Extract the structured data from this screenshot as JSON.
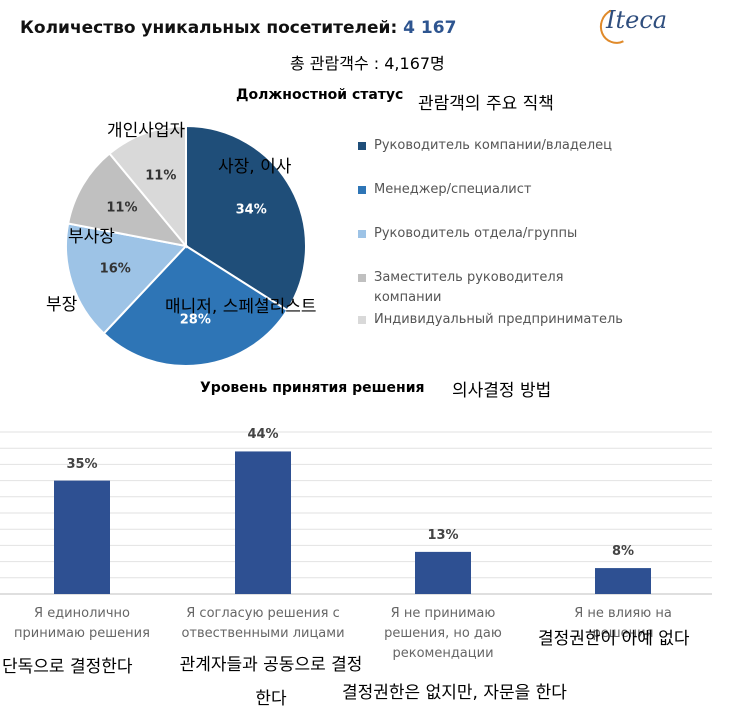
{
  "header": {
    "title_prefix": "Количество уникальных посетителей:",
    "title_number": "4 167",
    "logo": "ITECA",
    "korean_subtitle": "총 관람객수 : 4,167명"
  },
  "colors": {
    "title_number": "#2e5590",
    "bar": "#2e5092",
    "slice_1": "#1f4e79",
    "slice_2": "#2e75b6",
    "slice_3": "#9dc3e6",
    "slice_4": "#c0c0c0",
    "slice_5": "#d9d9d9"
  },
  "chart_data": [
    {
      "type": "pie",
      "title": "Должностной статус",
      "title_korean": "관람객의 주요 직책",
      "slices": [
        {
          "label": "Руководитель компании/владелец",
          "value": 34,
          "display": "34%",
          "korean": "사장, 이사",
          "color": "#1f4e79"
        },
        {
          "label": "Менеджер/специалист",
          "value": 28,
          "display": "28%",
          "korean": "매니저, 스페셜리스트",
          "color": "#2e75b6"
        },
        {
          "label": "Руководитель отдела/группы",
          "value": 16,
          "display": "16%",
          "korean": "부장",
          "color": "#9dc3e6"
        },
        {
          "label": "Заместитель руководителя компании",
          "value": 11,
          "display": "11%",
          "korean": "부사장",
          "color": "#c0c0c0"
        },
        {
          "label": "Индивидуальный предприниматель",
          "value": 11,
          "display": "11%",
          "korean": "개인사업자",
          "color": "#d9d9d9"
        }
      ],
      "legend": "right"
    },
    {
      "type": "bar",
      "title": "Уровень принятия решения",
      "title_korean": "의사결정 방법",
      "categories": [
        "Я единолично\nпринимаю решения",
        "Я согласую решения с\nотвественными лицами",
        "Я не принимаю\nрешения, но даю\nрекомендации",
        "Я не влияю на решения"
      ],
      "values": [
        35,
        44,
        13,
        8
      ],
      "value_labels": [
        "35%",
        "44%",
        "13%",
        "8%"
      ],
      "korean": [
        "단독으로 결정한다",
        "관계자들과 공동으로 결정한다",
        "결정권한은 없지만, 자문을 한다",
        "결정권한이 아예 없다"
      ],
      "ylim": [
        0,
        50
      ],
      "grid": true
    }
  ]
}
